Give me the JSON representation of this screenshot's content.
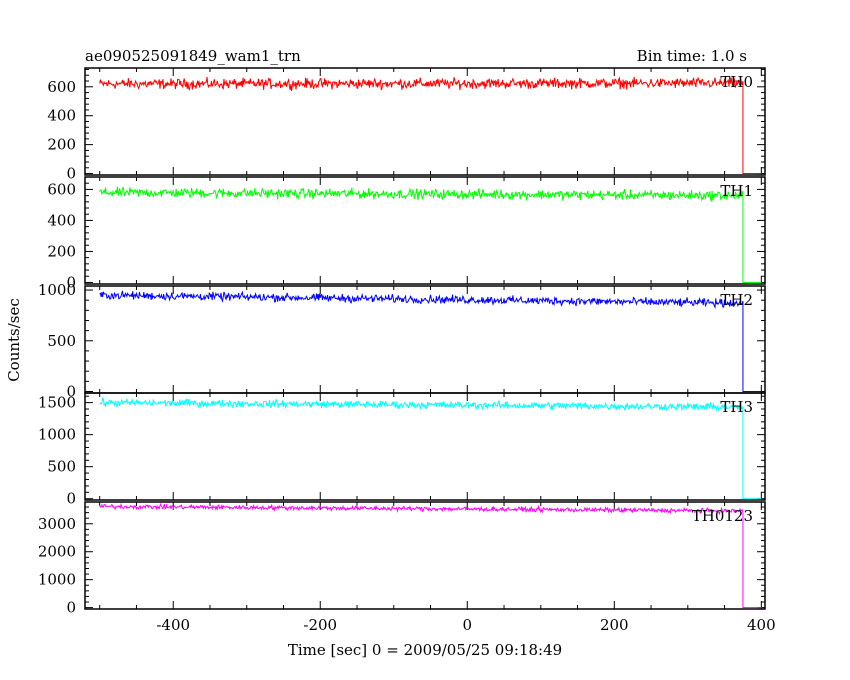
{
  "chart_data": {
    "type": "line",
    "title": "ae090525091849_wam1_trn",
    "subtitle": "Bin time: 1.0 s",
    "xlabel": "Time [sec] 0 = 2009/05/25 09:18:49",
    "ylabel": "Counts/sec",
    "xlim": [
      -520,
      405
    ],
    "xticks": [
      -400,
      -200,
      0,
      200,
      400
    ],
    "data_end": 375,
    "gap_end": 400,
    "panels": [
      {
        "name": "TH0",
        "color": "#ff0000",
        "ylim": [
          -10,
          730
        ],
        "yticks": [
          0,
          200,
          400,
          600
        ],
        "start": 620,
        "end": 625,
        "noise": 25
      },
      {
        "name": "TH1",
        "color": "#00ff00",
        "ylim": [
          -10,
          680
        ],
        "yticks": [
          0,
          200,
          400,
          600
        ],
        "start": 580,
        "end": 560,
        "noise": 22
      },
      {
        "name": "TH2",
        "color": "#0000ff",
        "ylim": [
          -15,
          1040
        ],
        "yticks": [
          0,
          500,
          1000
        ],
        "start": 950,
        "end": 870,
        "noise": 28
      },
      {
        "name": "TH3",
        "color": "#00ffff",
        "ylim": [
          -20,
          1650
        ],
        "yticks": [
          0,
          500,
          1000,
          1500
        ],
        "start": 1500,
        "end": 1430,
        "noise": 40
      },
      {
        "name": "TH0123",
        "color": "#ff00ff",
        "ylim": [
          -50,
          3780
        ],
        "yticks": [
          0,
          1000,
          2000,
          3000
        ],
        "start": 3620,
        "end": 3460,
        "noise": 55
      }
    ]
  }
}
